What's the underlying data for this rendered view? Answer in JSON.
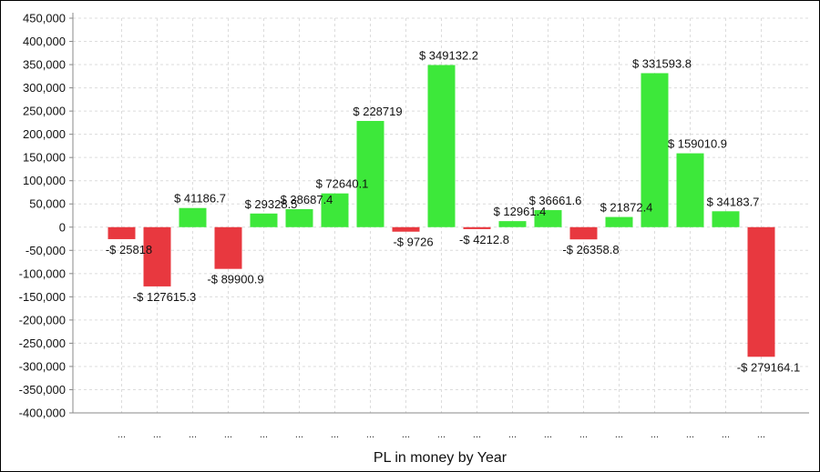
{
  "chart_data": {
    "type": "bar",
    "title": "",
    "xlabel": "PL in money by Year",
    "ylabel": "",
    "ylim": [
      -400000,
      450000
    ],
    "y_ticks": [
      450000,
      400000,
      350000,
      300000,
      250000,
      200000,
      150000,
      100000,
      50000,
      0,
      -50000,
      -100000,
      -150000,
      -200000,
      -250000,
      -300000,
      -350000,
      -400000
    ],
    "y_tick_labels": [
      "450,000",
      "400,000",
      "350,000",
      "300,000",
      "250,000",
      "200,000",
      "150,000",
      "100,000",
      "50,000",
      "0",
      "-50,000",
      "-100,000",
      "-150,000",
      "-200,000",
      "-250,000",
      "-300,000",
      "-350,000",
      "-400,000"
    ],
    "grid": true,
    "legend": "none",
    "categories": [
      "...",
      "...",
      "...",
      "...",
      "...",
      "...",
      "...",
      "...",
      "...",
      "...",
      "...",
      "...",
      "...",
      "...",
      "...",
      "...",
      "...",
      "...",
      "..."
    ],
    "values": [
      -25818,
      -127615.3,
      41186.7,
      -89900.9,
      29328.5,
      38687.4,
      72640.1,
      228719,
      -9726,
      349132.2,
      -4212.8,
      12961.4,
      36661.6,
      -26358.8,
      21872.4,
      331593.8,
      159010.9,
      34183.7,
      -279164.1
    ],
    "data_labels": [
      "-$ 25818",
      "-$ 127615.3",
      "$ 41186.7",
      "-$ 89900.9",
      "$ 29328.5",
      "$ 38687.4",
      "$ 72640.1",
      "$ 228719",
      "-$ 9726",
      "$ 349132.2",
      "-$ 4212.8",
      "$ 12961.4",
      "$ 36661.6",
      "-$ 26358.8",
      "$ 21872.4",
      "$ 331593.8",
      "$ 159010.9",
      "$ 34183.7",
      "-$ 279164.1"
    ],
    "colors": {
      "positive": "#3de83a",
      "negative": "#e8383f",
      "grid": "#dcdcdc",
      "axis": "#888888"
    }
  }
}
